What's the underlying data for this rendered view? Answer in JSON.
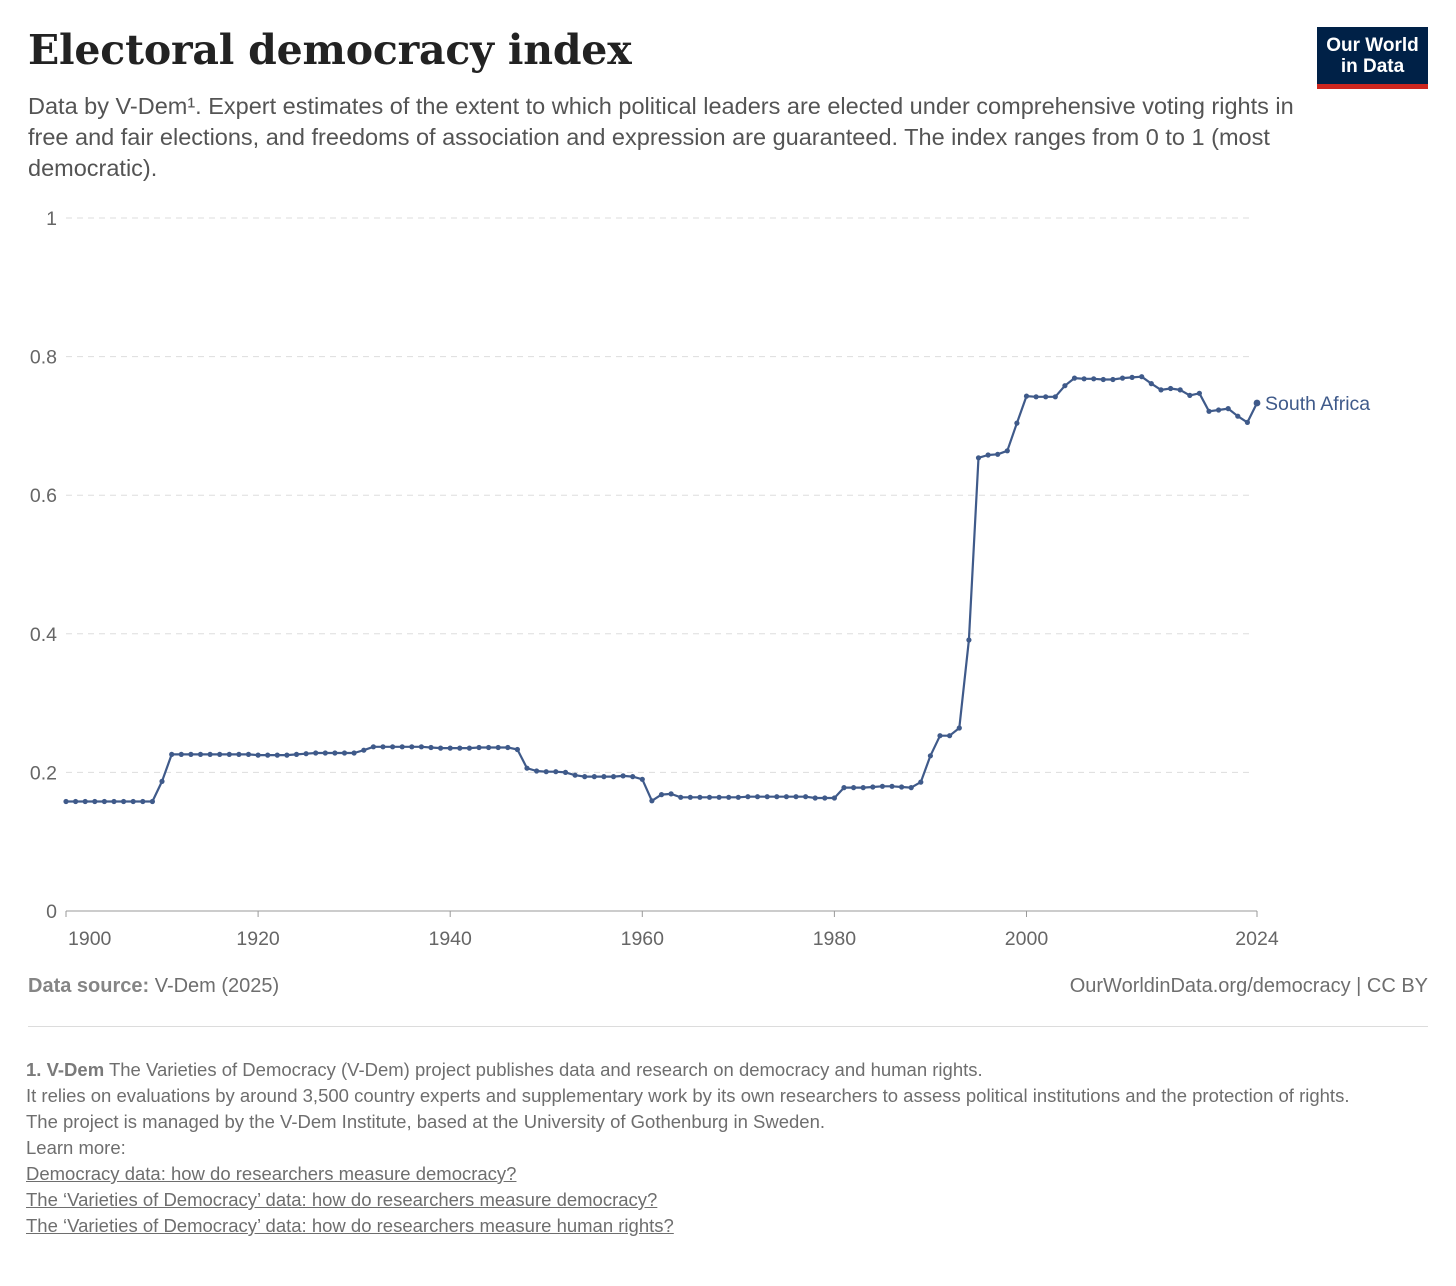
{
  "header": {
    "title": "Electoral democracy index",
    "subtitle": "Data by V-Dem¹. Expert estimates of the extent to which political leaders are elected under comprehensive voting rights in free and fair elections, and freedoms of association and expression are guaranteed. The index ranges from 0 to 1 (most democratic).",
    "logo_line1": "Our World",
    "logo_line2": "in Data"
  },
  "colors": {
    "series": "#3f5a8a",
    "grid": "#dddddd",
    "axis": "#999999",
    "logo_bg": "#002147",
    "logo_accent": "#ce261e"
  },
  "chart_data": {
    "type": "line",
    "title": "Electoral democracy index",
    "xlabel": "",
    "ylabel": "",
    "xlim": [
      1900,
      2024
    ],
    "ylim": [
      0,
      1
    ],
    "y_ticks": [
      "0",
      "0.2",
      "0.4",
      "0.6",
      "0.8",
      "1"
    ],
    "x_ticks": [
      "1900",
      "1920",
      "1940",
      "1960",
      "1980",
      "2000",
      "2024"
    ],
    "grid": "horizontal dashed",
    "legend": "line-end label",
    "series": [
      {
        "name": "South Africa",
        "x": [
          1900,
          1901,
          1902,
          1903,
          1904,
          1905,
          1906,
          1907,
          1908,
          1909,
          1910,
          1911,
          1912,
          1913,
          1914,
          1915,
          1916,
          1917,
          1918,
          1919,
          1920,
          1921,
          1922,
          1923,
          1924,
          1925,
          1926,
          1927,
          1928,
          1929,
          1930,
          1931,
          1932,
          1933,
          1934,
          1935,
          1936,
          1937,
          1938,
          1939,
          1940,
          1941,
          1942,
          1943,
          1944,
          1945,
          1946,
          1947,
          1948,
          1949,
          1950,
          1951,
          1952,
          1953,
          1954,
          1955,
          1956,
          1957,
          1958,
          1959,
          1960,
          1961,
          1962,
          1963,
          1964,
          1965,
          1966,
          1967,
          1968,
          1969,
          1970,
          1971,
          1972,
          1973,
          1974,
          1975,
          1976,
          1977,
          1978,
          1979,
          1980,
          1981,
          1982,
          1983,
          1984,
          1985,
          1986,
          1987,
          1988,
          1989,
          1990,
          1991,
          1992,
          1993,
          1994,
          1995,
          1996,
          1997,
          1998,
          1999,
          2000,
          2001,
          2002,
          2003,
          2004,
          2005,
          2006,
          2007,
          2008,
          2009,
          2010,
          2011,
          2012,
          2013,
          2014,
          2015,
          2016,
          2017,
          2018,
          2019,
          2020,
          2021,
          2022,
          2023,
          2024
        ],
        "values": [
          0.158,
          0.158,
          0.158,
          0.158,
          0.158,
          0.158,
          0.158,
          0.158,
          0.158,
          0.158,
          0.187,
          0.226,
          0.226,
          0.226,
          0.226,
          0.226,
          0.226,
          0.226,
          0.226,
          0.226,
          0.225,
          0.225,
          0.225,
          0.225,
          0.226,
          0.227,
          0.228,
          0.228,
          0.228,
          0.228,
          0.228,
          0.232,
          0.237,
          0.237,
          0.237,
          0.237,
          0.237,
          0.237,
          0.236,
          0.235,
          0.235,
          0.235,
          0.235,
          0.236,
          0.236,
          0.236,
          0.236,
          0.233,
          0.206,
          0.202,
          0.201,
          0.201,
          0.2,
          0.196,
          0.194,
          0.194,
          0.194,
          0.194,
          0.195,
          0.194,
          0.19,
          0.159,
          0.168,
          0.169,
          0.164,
          0.164,
          0.164,
          0.164,
          0.164,
          0.164,
          0.164,
          0.165,
          0.165,
          0.165,
          0.165,
          0.165,
          0.165,
          0.165,
          0.163,
          0.163,
          0.163,
          0.178,
          0.178,
          0.178,
          0.179,
          0.18,
          0.18,
          0.179,
          0.178,
          0.186,
          0.224,
          0.253,
          0.253,
          0.264,
          0.391,
          0.654,
          0.658,
          0.659,
          0.664,
          0.704,
          0.743,
          0.742,
          0.742,
          0.742,
          0.758,
          0.769,
          0.768,
          0.768,
          0.767,
          0.767,
          0.769,
          0.77,
          0.771,
          0.761,
          0.752,
          0.754,
          0.752,
          0.744,
          0.747,
          0.721,
          0.723,
          0.725,
          0.714,
          0.705,
          0.733
        ]
      }
    ]
  },
  "footer": {
    "source_label": "Data source:",
    "source_value": "V-Dem (2025)",
    "license": "OurWorldinData.org/democracy | CC BY"
  },
  "notes": {
    "fn_label": "1. V-Dem",
    "fn_line1": "The Varieties of Democracy (V-Dem) project publishes data and research on democracy and human rights.",
    "fn_line2": "It relies on evaluations by around 3,500 country experts and supplementary work by its own researchers to assess political institutions and the protection of rights.",
    "fn_line3": "The project is managed by the V-Dem Institute, based at the University of Gothenburg in Sweden.",
    "fn_line4": "Learn more:",
    "links": [
      "Democracy data: how do researchers measure democracy?",
      "The ‘Varieties of Democracy’ data: how do researchers measure democracy?",
      "The ‘Varieties of Democracy’ data: how do researchers measure human rights?"
    ]
  }
}
